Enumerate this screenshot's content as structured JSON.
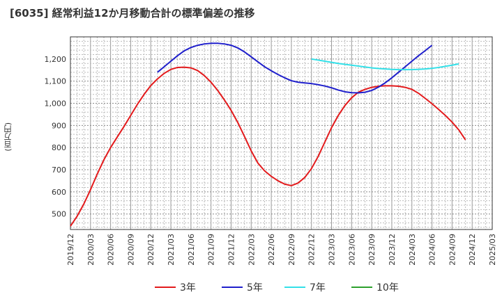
{
  "chart_data": {
    "type": "line",
    "title": "[6035]  経常利益12か月移動合計の標準偏差の推移",
    "ylabel": "(百万円)",
    "xlabel": "",
    "ylim": [
      430,
      1300
    ],
    "yticks": [
      500,
      600,
      700,
      800,
      900,
      1000,
      1100,
      1200
    ],
    "ytick_labels": [
      "500",
      "600",
      "700",
      "800",
      "900",
      "1,000",
      "1,100",
      "1,200"
    ],
    "xticks": [
      "2019/12",
      "2020/03",
      "2020/06",
      "2020/09",
      "2020/12",
      "2021/03",
      "2021/06",
      "2021/09",
      "2021/12",
      "2022/03",
      "2022/06",
      "2022/09",
      "2022/12",
      "2023/03",
      "2023/06",
      "2023/09",
      "2023/12",
      "2024/03",
      "2024/06",
      "2024/09",
      "2024/12",
      "2025/03"
    ],
    "grid": true,
    "legend_position": "bottom",
    "series": [
      {
        "name": "3年",
        "color": "#e31a1c",
        "points": [
          [
            "2019/12",
            445
          ],
          [
            "2020/01",
            490
          ],
          [
            "2020/02",
            545
          ],
          [
            "2020/03",
            610
          ],
          [
            "2020/04",
            680
          ],
          [
            "2020/05",
            745
          ],
          [
            "2020/06",
            800
          ],
          [
            "2020/07",
            848
          ],
          [
            "2020/08",
            895
          ],
          [
            "2020/09",
            945
          ],
          [
            "2020/10",
            995
          ],
          [
            "2020/11",
            1040
          ],
          [
            "2020/12",
            1080
          ],
          [
            "2021/01",
            1110
          ],
          [
            "2021/02",
            1135
          ],
          [
            "2021/03",
            1153
          ],
          [
            "2021/04",
            1162
          ],
          [
            "2021/05",
            1163
          ],
          [
            "2021/06",
            1160
          ],
          [
            "2021/07",
            1148
          ],
          [
            "2021/08",
            1125
          ],
          [
            "2021/09",
            1095
          ],
          [
            "2021/10",
            1058
          ],
          [
            "2021/11",
            1015
          ],
          [
            "2021/12",
            968
          ],
          [
            "2022/01",
            913
          ],
          [
            "2022/02",
            850
          ],
          [
            "2022/03",
            785
          ],
          [
            "2022/04",
            730
          ],
          [
            "2022/05",
            695
          ],
          [
            "2022/06",
            670
          ],
          [
            "2022/07",
            650
          ],
          [
            "2022/08",
            635
          ],
          [
            "2022/09",
            628
          ],
          [
            "2022/10",
            640
          ],
          [
            "2022/11",
            665
          ],
          [
            "2022/12",
            705
          ],
          [
            "2023/01",
            760
          ],
          [
            "2023/02",
            825
          ],
          [
            "2023/03",
            890
          ],
          [
            "2023/04",
            945
          ],
          [
            "2023/05",
            990
          ],
          [
            "2023/06",
            1025
          ],
          [
            "2023/07",
            1050
          ],
          [
            "2023/08",
            1063
          ],
          [
            "2023/09",
            1072
          ],
          [
            "2023/10",
            1077
          ],
          [
            "2023/11",
            1079
          ],
          [
            "2023/12",
            1079
          ],
          [
            "2024/01",
            1077
          ],
          [
            "2024/02",
            1072
          ],
          [
            "2024/03",
            1063
          ],
          [
            "2024/04",
            1045
          ],
          [
            "2024/05",
            1022
          ],
          [
            "2024/06",
            998
          ],
          [
            "2024/07",
            972
          ],
          [
            "2024/08",
            945
          ],
          [
            "2024/09",
            915
          ],
          [
            "2024/10",
            880
          ],
          [
            "2024/11",
            835
          ]
        ]
      },
      {
        "name": "5年",
        "color": "#1f1fcc",
        "points": [
          [
            "2021/01",
            1140
          ],
          [
            "2021/02",
            1165
          ],
          [
            "2021/03",
            1190
          ],
          [
            "2021/04",
            1215
          ],
          [
            "2021/05",
            1237
          ],
          [
            "2021/06",
            1252
          ],
          [
            "2021/07",
            1262
          ],
          [
            "2021/08",
            1268
          ],
          [
            "2021/09",
            1271
          ],
          [
            "2021/10",
            1271
          ],
          [
            "2021/11",
            1268
          ],
          [
            "2021/12",
            1262
          ],
          [
            "2022/01",
            1250
          ],
          [
            "2022/02",
            1232
          ],
          [
            "2022/03",
            1210
          ],
          [
            "2022/04",
            1187
          ],
          [
            "2022/05",
            1165
          ],
          [
            "2022/06",
            1147
          ],
          [
            "2022/07",
            1130
          ],
          [
            "2022/08",
            1115
          ],
          [
            "2022/09",
            1102
          ],
          [
            "2022/10",
            1095
          ],
          [
            "2022/11",
            1092
          ],
          [
            "2022/12",
            1089
          ],
          [
            "2023/01",
            1084
          ],
          [
            "2023/02",
            1078
          ],
          [
            "2023/03",
            1070
          ],
          [
            "2023/04",
            1060
          ],
          [
            "2023/05",
            1052
          ],
          [
            "2023/06",
            1048
          ],
          [
            "2023/07",
            1047
          ],
          [
            "2023/08",
            1050
          ],
          [
            "2023/09",
            1058
          ],
          [
            "2023/10",
            1073
          ],
          [
            "2023/11",
            1092
          ],
          [
            "2023/12",
            1115
          ],
          [
            "2024/01",
            1140
          ],
          [
            "2024/02",
            1165
          ],
          [
            "2024/03",
            1190
          ],
          [
            "2024/04",
            1215
          ],
          [
            "2024/05",
            1238
          ],
          [
            "2024/06",
            1262
          ]
        ]
      },
      {
        "name": "7年",
        "color": "#33e0e8",
        "points": [
          [
            "2022/12",
            1200
          ],
          [
            "2023/01",
            1195
          ],
          [
            "2023/02",
            1190
          ],
          [
            "2023/03",
            1185
          ],
          [
            "2023/04",
            1180
          ],
          [
            "2023/05",
            1176
          ],
          [
            "2023/06",
            1172
          ],
          [
            "2023/07",
            1168
          ],
          [
            "2023/08",
            1164
          ],
          [
            "2023/09",
            1160
          ],
          [
            "2023/10",
            1157
          ],
          [
            "2023/11",
            1155
          ],
          [
            "2023/12",
            1153
          ],
          [
            "2024/01",
            1152
          ],
          [
            "2024/02",
            1152
          ],
          [
            "2024/03",
            1152
          ],
          [
            "2024/04",
            1153
          ],
          [
            "2024/05",
            1155
          ],
          [
            "2024/06",
            1158
          ],
          [
            "2024/07",
            1162
          ],
          [
            "2024/08",
            1167
          ],
          [
            "2024/09",
            1172
          ],
          [
            "2024/10",
            1178
          ]
        ]
      },
      {
        "name": "10年",
        "color": "#2ca02c",
        "points": []
      }
    ]
  }
}
